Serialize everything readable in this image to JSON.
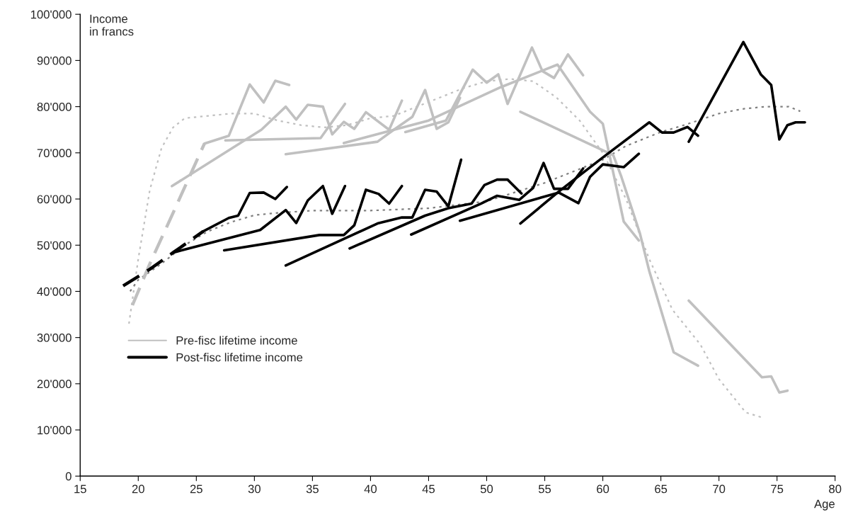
{
  "chart_data": {
    "type": "line",
    "xlabel": "Age",
    "ylabel": "Income\nin francs",
    "xlim": [
      15,
      80
    ],
    "xticks": [
      15,
      20,
      25,
      30,
      35,
      40,
      45,
      50,
      55,
      60,
      65,
      70,
      75,
      80
    ],
    "ylim": [
      0,
      100000
    ],
    "yticks": [
      {
        "value": 0,
        "label": "0"
      },
      {
        "value": 10000,
        "label": "10'000"
      },
      {
        "value": 20000,
        "label": "20'000"
      },
      {
        "value": 30000,
        "label": "30'000"
      },
      {
        "value": 40000,
        "label": "40'000"
      },
      {
        "value": 50000,
        "label": "50'000"
      },
      {
        "value": 60000,
        "label": "60'000"
      },
      {
        "value": 70000,
        "label": "70'000"
      },
      {
        "value": 80000,
        "label": "80'000"
      },
      {
        "value": 90000,
        "label": "90'000"
      },
      {
        "value": 100000,
        "label": "100'000"
      }
    ],
    "grid": false,
    "legend": "bottom left",
    "series": [
      {
        "color": "#c0c0c0",
        "line_style": "dotted",
        "x": [
          19.2,
          20,
          21,
          22,
          23,
          24,
          26,
          28,
          30,
          32,
          34,
          36,
          38,
          40,
          42,
          44,
          46,
          48,
          50,
          52,
          54,
          56,
          58,
          60,
          62,
          64,
          66,
          68.4,
          70,
          72.3,
          73.7
        ],
        "values": [
          33000,
          47000,
          62000,
          71000,
          75500,
          77500,
          78000,
          78500,
          78500,
          77000,
          76000,
          75500,
          76000,
          77500,
          78000,
          80000,
          82000,
          84000,
          85500,
          86000,
          85500,
          82000,
          77000,
          70000,
          60000,
          47000,
          36000,
          28500,
          21000,
          13800,
          12700
        ]
      },
      {
        "color": "#808080",
        "line_style": "dotted",
        "x": [
          19.3,
          20,
          22,
          24,
          26,
          28,
          30,
          32,
          35,
          40,
          45,
          50,
          55,
          60,
          62,
          65,
          67,
          70,
          72,
          74,
          76,
          77
        ],
        "values": [
          40000,
          42500,
          46000,
          50000,
          53000,
          55000,
          56500,
          57000,
          57500,
          57500,
          58000,
          59500,
          63500,
          68500,
          71500,
          74500,
          76000,
          78500,
          79500,
          80000,
          80000,
          79000
        ]
      },
      {
        "color": "#c0c0c0",
        "line_style": "dashed",
        "x": [
          19.5,
          21,
          23,
          25.7
        ],
        "values": [
          37000,
          46000,
          57000,
          72000
        ]
      },
      {
        "name": "Pre-fisc lifetime income",
        "color": "#c0c0c0",
        "line_style": "solid",
        "x": [
          25.7,
          27.8,
          29.6,
          30.8,
          31.8,
          33
        ],
        "values": [
          72000,
          73700,
          84800,
          80900,
          85600,
          84700
        ]
      },
      {
        "color": "#c0c0c0",
        "line_style": "solid",
        "x": [
          22.9,
          30.6,
          32.7,
          33.6,
          34.6,
          35.9,
          36.7,
          37.7,
          38.6,
          39.6,
          41.6,
          42.7
        ],
        "values": [
          62800,
          75000,
          80000,
          77200,
          80400,
          80000,
          74000,
          76700,
          75200,
          78800,
          75000,
          81300
        ]
      },
      {
        "color": "#c0c0c0",
        "line_style": "solid",
        "x": [
          27.5,
          35.7,
          37.8
        ],
        "values": [
          72700,
          73200,
          80600
        ]
      },
      {
        "color": "#c0c0c0",
        "line_style": "solid",
        "x": [
          32.7,
          40.6,
          42,
          43.6,
          44.7,
          45.7,
          46.7,
          47.7
        ],
        "values": [
          69700,
          72400,
          75000,
          77800,
          83600,
          75200,
          76600,
          81900
        ]
      },
      {
        "color": "#c0c0c0",
        "line_style": "solid",
        "x": [
          37.7,
          45,
          51.2,
          56.1,
          58.9,
          60,
          61.8,
          63.1
        ],
        "values": [
          72100,
          77000,
          84200,
          89100,
          78900,
          76300,
          55100,
          51000
        ]
      },
      {
        "color": "#c0c0c0",
        "line_style": "solid",
        "x": [
          43,
          46.5,
          48.8,
          50,
          51,
          51.8,
          53.9,
          54.8,
          55.8,
          57,
          58.3
        ],
        "values": [
          74500,
          77000,
          88000,
          85200,
          87000,
          80600,
          92800,
          87700,
          86200,
          91300,
          86800
        ]
      },
      {
        "color": "#c0c0c0",
        "line_style": "solid",
        "x": [
          52.9,
          60.9,
          61.6,
          63.2,
          64,
          66.1,
          68.2
        ],
        "values": [
          78900,
          69500,
          64800,
          52500,
          44400,
          26800,
          23900
        ]
      },
      {
        "color": "#c0c0c0",
        "line_style": "solid",
        "x": [
          67.4,
          73.7,
          74.5,
          75.2,
          75.9
        ],
        "values": [
          38000,
          21400,
          21600,
          18100,
          18500
        ]
      },
      {
        "color": "#000000",
        "line_style": "dashed",
        "x": [
          18.7,
          21,
          23,
          25.6
        ],
        "values": [
          41200,
          44800,
          48400,
          53000
        ]
      },
      {
        "name": "Post-fisc lifetime income",
        "color": "#000000",
        "line_style": "solid",
        "x": [
          25.6,
          27.8,
          28.6,
          29.6,
          30.8,
          31.8,
          32.8
        ],
        "values": [
          53000,
          55900,
          56400,
          61300,
          61400,
          60000,
          62600
        ]
      },
      {
        "color": "#000000",
        "line_style": "solid",
        "x": [
          23,
          30.5,
          32.7,
          33.6,
          34.6,
          35.9,
          36.7,
          37.8
        ],
        "values": [
          48400,
          53300,
          57600,
          54800,
          59700,
          62800,
          56800,
          62800
        ]
      },
      {
        "color": "#000000",
        "line_style": "solid",
        "x": [
          27.4,
          35.6,
          37.7,
          38.6,
          39.6,
          40.7,
          41.6,
          42.7
        ],
        "values": [
          48900,
          52200,
          52200,
          54300,
          62000,
          61100,
          59000,
          62800
        ]
      },
      {
        "color": "#000000",
        "line_style": "solid",
        "x": [
          32.7,
          40.6,
          42.7,
          43.6,
          44.7,
          45.7,
          46.7,
          47.8
        ],
        "values": [
          45600,
          54700,
          56000,
          56000,
          62000,
          61600,
          58400,
          68500
        ]
      },
      {
        "color": "#000000",
        "line_style": "solid",
        "x": [
          38.2,
          44.7,
          46.7,
          48.7,
          49.8,
          50.9,
          51.8,
          53
        ],
        "values": [
          49300,
          56400,
          58000,
          59000,
          63000,
          64200,
          64200,
          61200
        ]
      },
      {
        "color": "#000000",
        "line_style": "solid",
        "x": [
          43.5,
          49.5,
          50.9,
          52.8,
          54,
          54.9,
          55.8,
          57,
          58.3
        ],
        "values": [
          52300,
          59000,
          60700,
          59800,
          62400,
          67800,
          62200,
          62200,
          66600
        ]
      },
      {
        "color": "#000000",
        "line_style": "solid",
        "x": [
          47.7,
          56.2,
          57.9,
          58.9,
          60,
          61.8,
          63.1
        ],
        "values": [
          55300,
          61400,
          59100,
          64800,
          67500,
          66900,
          69800
        ]
      },
      {
        "color": "#000000",
        "line_style": "solid",
        "x": [
          52.9,
          56.2,
          60,
          64,
          65.1,
          66.1,
          67.3,
          68.2
        ],
        "values": [
          54700,
          61600,
          69000,
          76600,
          74400,
          74400,
          75600,
          73700
        ]
      },
      {
        "color": "#000000",
        "line_style": "solid",
        "x": [
          67.4,
          72.1,
          73.6,
          74.5,
          75.2,
          75.9,
          76.6,
          77.4
        ],
        "values": [
          72400,
          94000,
          87000,
          84700,
          72900,
          76000,
          76600,
          76600
        ]
      }
    ]
  }
}
